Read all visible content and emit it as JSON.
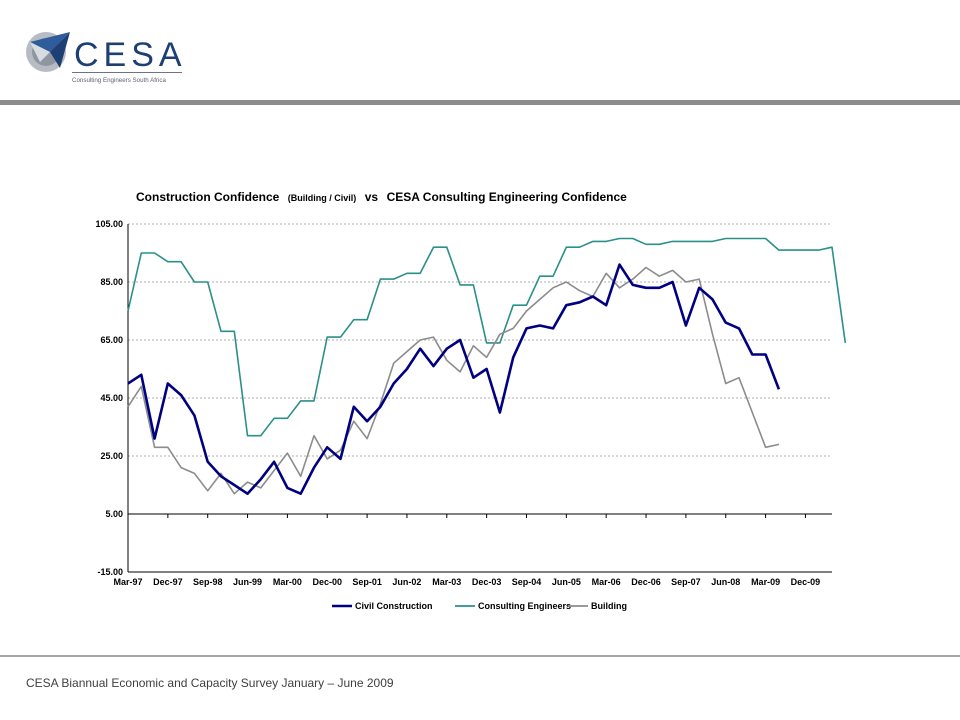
{
  "logo": {
    "name": "CESA",
    "tagline": "Consulting Engineers South Africa"
  },
  "footer": {
    "text": "CESA Biannual Economic and Capacity Survey January – June 2009"
  },
  "colors": {
    "civil": "#000080",
    "consulting": "#2A9088",
    "building": "#8C8C8C"
  },
  "chart_data": {
    "type": "line",
    "title_parts": [
      "Construction Confidence",
      "(Building / Civil)",
      "vs",
      "CESA Consulting Engineering Confidence"
    ],
    "ylim": [
      -15,
      105
    ],
    "yticks": [
      "105.00",
      "85.00",
      "65.00",
      "45.00",
      "25.00",
      "5.00",
      "-15.00"
    ],
    "ytick_values": [
      105,
      85,
      65,
      45,
      25,
      5,
      -15
    ],
    "xticks": [
      "Mar-97",
      "Dec-97",
      "Sep-98",
      "Jun-99",
      "Mar-00",
      "Dec-00",
      "Sep-01",
      "Jun-02",
      "Mar-03",
      "Dec-03",
      "Sep-04",
      "Jun-05",
      "Mar-06",
      "Dec-06",
      "Sep-07",
      "Jun-08",
      "Mar-09",
      "Dec-09"
    ],
    "grid": true,
    "legend_position": "bottom",
    "series": [
      {
        "name": "Civil Construction",
        "values": [
          50,
          53,
          31,
          50,
          46,
          39,
          23,
          18,
          15,
          12,
          17,
          23,
          14,
          12,
          21,
          28,
          24,
          42,
          37,
          42,
          50,
          55,
          62,
          56,
          62,
          65,
          52,
          55,
          40,
          59,
          69,
          70,
          69,
          77,
          78,
          80,
          77,
          91,
          84,
          83,
          83,
          85,
          70,
          83,
          79,
          71,
          69,
          60,
          60,
          48
        ]
      },
      {
        "name": "Consulting Engineers",
        "values": [
          75,
          95,
          95,
          92,
          92,
          85,
          85,
          68,
          68,
          32,
          32,
          38,
          38,
          44,
          44,
          66,
          66,
          72,
          72,
          86,
          86,
          88,
          88,
          97,
          97,
          84,
          84,
          64,
          64,
          77,
          77,
          87,
          87,
          97,
          97,
          99,
          99,
          100,
          100,
          98,
          98,
          99,
          99,
          99,
          99,
          100,
          100,
          100,
          100,
          96,
          96,
          96,
          96,
          97,
          64
        ]
      },
      {
        "name": "Building",
        "values": [
          42,
          49,
          28,
          28,
          21,
          19,
          13,
          19,
          12,
          16,
          14,
          20,
          26,
          18,
          32,
          24,
          27,
          37,
          31,
          43,
          57,
          61,
          65,
          66,
          58,
          54,
          63,
          59,
          67,
          69,
          75,
          79,
          83,
          85,
          82,
          80,
          88,
          83,
          86,
          90,
          87,
          89,
          85,
          86,
          67,
          50,
          52,
          40,
          28,
          29
        ]
      }
    ]
  }
}
